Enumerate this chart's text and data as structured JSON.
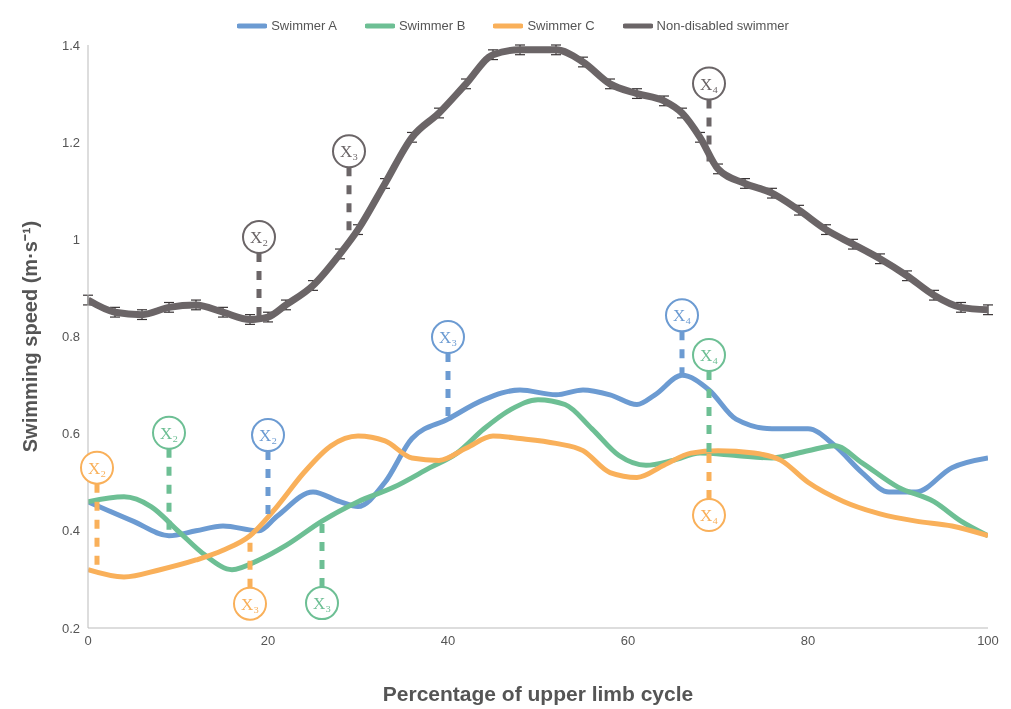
{
  "chart_data": {
    "type": "line",
    "xlabel": "Percentage of upper limb cycle",
    "ylabel": "Swimming speed (m·s⁻¹)",
    "xlim": [
      0,
      100
    ],
    "xticks": [
      0,
      20,
      40,
      60,
      80,
      100
    ],
    "ylim": [
      0.2,
      1.4
    ],
    "yticks": [
      0.2,
      0.4,
      0.6,
      0.8,
      1,
      1.2,
      1.4
    ],
    "legend": "top",
    "grid": false,
    "marker": "none",
    "line_style": "solid",
    "series": [
      {
        "name": "Swimmer A",
        "color": "#6c9bd2",
        "x": [
          0,
          5,
          9,
          12,
          15,
          19,
          21,
          25,
          28,
          30,
          33,
          36,
          40,
          44,
          48,
          52,
          55,
          58,
          61,
          63,
          66,
          69,
          72,
          76,
          80,
          83,
          86,
          89,
          92,
          96,
          100
        ],
        "values": [
          0.46,
          0.42,
          0.39,
          0.4,
          0.41,
          0.4,
          0.43,
          0.48,
          0.46,
          0.45,
          0.5,
          0.59,
          0.63,
          0.67,
          0.69,
          0.68,
          0.69,
          0.68,
          0.66,
          0.68,
          0.72,
          0.69,
          0.63,
          0.61,
          0.61,
          0.575,
          0.52,
          0.48,
          0.48,
          0.53,
          0.55
        ]
      },
      {
        "name": "Swimmer B",
        "color": "#6dbf94",
        "x": [
          0,
          4,
          7,
          10,
          13,
          16,
          19,
          22,
          26,
          30,
          34,
          38,
          41,
          44,
          47,
          50,
          53,
          56,
          59,
          62,
          65,
          68,
          72,
          76,
          80,
          83,
          86,
          90,
          94,
          97,
          100
        ],
        "values": [
          0.46,
          0.47,
          0.45,
          0.4,
          0.35,
          0.32,
          0.34,
          0.37,
          0.42,
          0.46,
          0.49,
          0.53,
          0.56,
          0.61,
          0.65,
          0.67,
          0.66,
          0.61,
          0.555,
          0.535,
          0.545,
          0.56,
          0.555,
          0.55,
          0.565,
          0.575,
          0.54,
          0.49,
          0.46,
          0.42,
          0.39
        ]
      },
      {
        "name": "Swimmer C",
        "color": "#f9b05a",
        "x": [
          0,
          4,
          8,
          12,
          15,
          18,
          21,
          24,
          27,
          30,
          33,
          36,
          39,
          42,
          45,
          48,
          52,
          55,
          58,
          61,
          64,
          67,
          70,
          74,
          77,
          80,
          84,
          88,
          92,
          96,
          100
        ],
        "values": [
          0.32,
          0.305,
          0.32,
          0.34,
          0.36,
          0.39,
          0.45,
          0.52,
          0.575,
          0.595,
          0.585,
          0.55,
          0.545,
          0.57,
          0.595,
          0.59,
          0.58,
          0.565,
          0.52,
          0.51,
          0.535,
          0.56,
          0.565,
          0.56,
          0.545,
          0.5,
          0.46,
          0.435,
          0.42,
          0.41,
          0.39
        ]
      },
      {
        "name": "Non-disabled swimmer",
        "color": "#6b6567",
        "x": [
          0,
          3,
          6,
          9,
          12,
          15,
          18,
          20,
          22,
          25,
          28,
          30,
          33,
          36,
          39,
          42,
          45,
          48,
          52,
          55,
          58,
          61,
          64,
          66,
          68,
          70,
          73,
          76,
          79,
          82,
          85,
          88,
          91,
          94,
          97,
          100
        ],
        "values": [
          0.875,
          0.85,
          0.845,
          0.86,
          0.865,
          0.85,
          0.835,
          0.84,
          0.865,
          0.905,
          0.97,
          1.02,
          1.115,
          1.21,
          1.26,
          1.32,
          1.38,
          1.39,
          1.39,
          1.365,
          1.32,
          1.3,
          1.285,
          1.26,
          1.21,
          1.145,
          1.115,
          1.095,
          1.06,
          1.02,
          0.99,
          0.96,
          0.925,
          0.885,
          0.86,
          0.855
        ],
        "errors": [
          0.01,
          0.01,
          0.01,
          0.01,
          0.01,
          0.01,
          0.01,
          0.01,
          0.01,
          0.01,
          0.01,
          0.01,
          0.01,
          0.01,
          0.01,
          0.01,
          0.01,
          0.01,
          0.01,
          0.01,
          0.01,
          0.01,
          0.01,
          0.01,
          0.01,
          0.01,
          0.01,
          0.01,
          0.01,
          0.01,
          0.01,
          0.01,
          0.01,
          0.01,
          0.01,
          0.01
        ]
      }
    ],
    "annotations": [
      {
        "text": "X₂",
        "x": 1,
        "y": 0.32
      },
      {
        "text": "X₂",
        "x": 9,
        "y": 0.4
      },
      {
        "text": "X₂",
        "x": 20,
        "y": 0.42
      },
      {
        "text": "X₃",
        "x": 18,
        "y": 0.39
      },
      {
        "text": "X₃",
        "x": 26,
        "y": 0.42
      },
      {
        "text": "X₃",
        "x": 40,
        "y": 0.63
      },
      {
        "text": "X₄",
        "x": 66,
        "y": 0.72
      },
      {
        "text": "X₄",
        "x": 69,
        "y": 0.56
      },
      {
        "text": "X₄",
        "x": 69,
        "y": 0.56
      },
      {
        "text": "X₂",
        "x": 19,
        "y": 0.84
      },
      {
        "text": "X₃",
        "x": 29,
        "y": 1.0
      },
      {
        "text": "X₄",
        "x": 69,
        "y": 1.16
      }
    ]
  }
}
